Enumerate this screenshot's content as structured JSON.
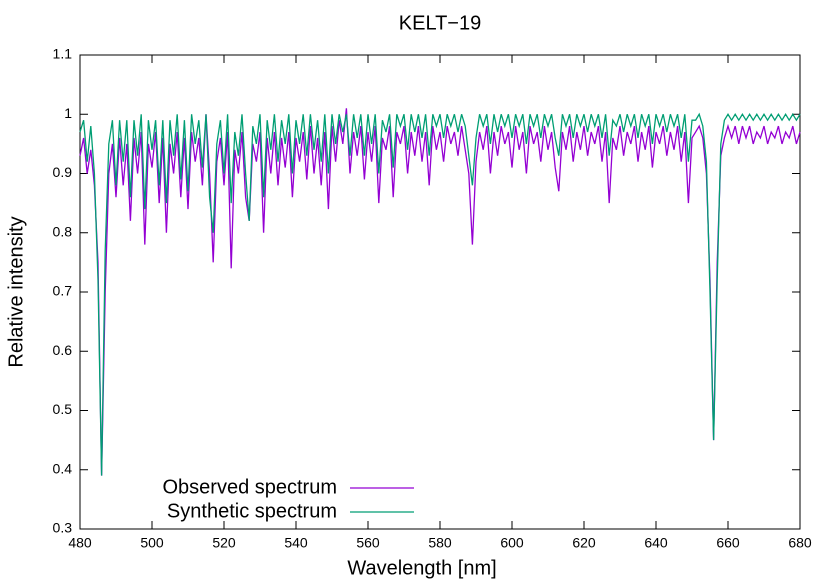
{
  "chart_data": {
    "type": "line",
    "title": "KELT−19",
    "x_label": "Wavelength [nm]",
    "y_label": "Relative intensity",
    "x": [
      480,
      481,
      482,
      483,
      484,
      485,
      486,
      487,
      488,
      489,
      490,
      491,
      492,
      493,
      494,
      495,
      496,
      497,
      498,
      499,
      500,
      501,
      502,
      503,
      504,
      505,
      506,
      507,
      508,
      509,
      510,
      511,
      512,
      513,
      514,
      515,
      516,
      517,
      518,
      519,
      520,
      521,
      522,
      523,
      524,
      525,
      526,
      527,
      528,
      529,
      530,
      531,
      532,
      533,
      534,
      535,
      536,
      537,
      538,
      539,
      540,
      541,
      542,
      543,
      544,
      545,
      546,
      547,
      548,
      549,
      550,
      551,
      552,
      553,
      554,
      555,
      556,
      557,
      558,
      559,
      560,
      561,
      562,
      563,
      564,
      565,
      566,
      567,
      568,
      569,
      570,
      571,
      572,
      573,
      574,
      575,
      576,
      577,
      578,
      579,
      580,
      581,
      582,
      583,
      584,
      585,
      586,
      587,
      588,
      589,
      590,
      591,
      592,
      593,
      594,
      595,
      596,
      597,
      598,
      599,
      600,
      601,
      602,
      603,
      604,
      605,
      606,
      607,
      608,
      609,
      610,
      611,
      612,
      613,
      614,
      615,
      616,
      617,
      618,
      619,
      620,
      621,
      622,
      623,
      624,
      625,
      626,
      627,
      628,
      629,
      630,
      631,
      632,
      633,
      634,
      635,
      636,
      637,
      638,
      639,
      640,
      641,
      642,
      643,
      644,
      645,
      646,
      647,
      648,
      649,
      650,
      651,
      652,
      653,
      654,
      655,
      656,
      657,
      658,
      659,
      660,
      661,
      662,
      663,
      664,
      665,
      666,
      667,
      668,
      669,
      670,
      671,
      672,
      673,
      674,
      675,
      676,
      677,
      678,
      679,
      680
    ],
    "series": [
      {
        "name": "Observed spectrum",
        "color": "#9400d3",
        "values": [
          0.93,
          0.96,
          0.9,
          0.94,
          0.88,
          0.75,
          0.39,
          0.7,
          0.9,
          0.95,
          0.86,
          0.96,
          0.88,
          0.95,
          0.82,
          0.96,
          0.9,
          0.97,
          0.78,
          0.95,
          0.91,
          0.97,
          0.85,
          0.96,
          0.8,
          0.95,
          0.9,
          0.97,
          0.86,
          0.96,
          0.84,
          0.97,
          0.92,
          0.96,
          0.88,
          1.0,
          0.9,
          0.75,
          0.92,
          0.96,
          0.88,
          0.97,
          0.74,
          0.94,
          0.9,
          0.97,
          0.86,
          0.82,
          0.95,
          0.92,
          0.97,
          0.8,
          0.96,
          0.9,
          0.97,
          0.88,
          0.96,
          0.91,
          0.97,
          0.86,
          0.96,
          0.92,
          0.97,
          0.89,
          0.98,
          0.9,
          0.96,
          0.88,
          0.97,
          0.84,
          0.98,
          0.92,
          0.99,
          0.95,
          1.01,
          0.9,
          0.97,
          0.93,
          0.98,
          0.89,
          0.97,
          0.92,
          0.98,
          0.85,
          0.96,
          0.94,
          0.98,
          0.86,
          0.97,
          0.95,
          0.98,
          0.9,
          0.97,
          0.93,
          0.98,
          0.92,
          0.97,
          0.88,
          0.98,
          0.94,
          0.97,
          0.92,
          0.98,
          0.95,
          0.97,
          0.93,
          0.98,
          0.94,
          0.9,
          0.78,
          0.92,
          0.97,
          0.94,
          0.98,
          0.9,
          0.97,
          0.93,
          0.98,
          0.95,
          0.97,
          0.91,
          0.98,
          0.94,
          0.97,
          0.9,
          0.98,
          0.95,
          0.97,
          0.92,
          0.98,
          0.94,
          0.97,
          0.91,
          0.87,
          0.97,
          0.94,
          0.98,
          0.92,
          0.97,
          0.94,
          0.98,
          0.93,
          0.97,
          0.95,
          0.98,
          0.92,
          0.97,
          0.85,
          0.96,
          0.94,
          0.98,
          0.93,
          0.97,
          0.95,
          0.98,
          0.92,
          0.97,
          0.94,
          0.98,
          0.91,
          0.97,
          0.95,
          0.98,
          0.93,
          0.97,
          0.94,
          0.98,
          0.92,
          0.97,
          0.85,
          0.96,
          0.97,
          0.98,
          0.96,
          0.9,
          0.72,
          0.45,
          0.75,
          0.93,
          0.96,
          0.98,
          0.96,
          0.98,
          0.95,
          0.98,
          0.96,
          0.98,
          0.95,
          0.97,
          0.96,
          0.98,
          0.95,
          0.97,
          0.96,
          0.98,
          0.95,
          0.97,
          0.96,
          0.98,
          0.95,
          0.97
        ]
      },
      {
        "name": "Synthetic spectrum",
        "color": "#009e73",
        "values": [
          0.97,
          0.99,
          0.92,
          0.98,
          0.9,
          0.72,
          0.39,
          0.77,
          0.95,
          0.99,
          0.88,
          0.99,
          0.92,
          0.99,
          0.86,
          0.99,
          0.93,
          1.0,
          0.84,
          0.99,
          0.94,
          0.99,
          0.88,
          0.99,
          0.85,
          0.99,
          0.93,
          1.0,
          0.89,
          0.99,
          0.87,
          1.0,
          0.95,
          0.99,
          0.91,
          1.0,
          0.86,
          0.8,
          0.95,
          0.99,
          0.9,
          1.0,
          0.85,
          0.97,
          0.93,
          1.0,
          0.9,
          0.82,
          0.98,
          0.95,
          1.0,
          0.86,
          0.99,
          0.94,
          1.0,
          0.92,
          0.99,
          0.95,
          1.0,
          0.9,
          0.99,
          0.95,
          1.0,
          0.93,
          1.0,
          0.94,
          0.99,
          0.92,
          1.0,
          0.9,
          1.0,
          0.95,
          1.0,
          0.97,
          1.0,
          0.93,
          1.0,
          0.96,
          1.0,
          0.93,
          1.0,
          0.95,
          1.0,
          0.9,
          0.99,
          0.97,
          1.0,
          0.91,
          1.0,
          0.98,
          1.0,
          0.94,
          1.0,
          0.97,
          1.0,
          0.96,
          1.0,
          0.93,
          1.0,
          0.98,
          1.0,
          0.96,
          1.0,
          0.98,
          1.0,
          0.97,
          1.0,
          0.98,
          0.93,
          0.88,
          0.96,
          1.0,
          0.98,
          1.0,
          0.95,
          1.0,
          0.97,
          1.0,
          0.98,
          1.0,
          0.96,
          1.0,
          0.98,
          1.0,
          0.95,
          1.0,
          0.98,
          1.0,
          0.96,
          1.0,
          0.98,
          1.0,
          0.96,
          0.93,
          1.0,
          0.98,
          1.0,
          0.96,
          1.0,
          0.98,
          1.0,
          0.97,
          1.0,
          0.98,
          1.0,
          0.96,
          1.0,
          0.93,
          0.99,
          0.98,
          1.0,
          0.97,
          1.0,
          0.98,
          1.0,
          0.96,
          1.0,
          0.98,
          1.0,
          0.95,
          1.0,
          0.98,
          1.0,
          0.97,
          1.0,
          0.98,
          1.0,
          0.96,
          1.0,
          0.92,
          0.99,
          0.99,
          1.0,
          0.98,
          0.92,
          0.7,
          0.45,
          0.72,
          0.95,
          0.99,
          1.0,
          0.99,
          1.0,
          0.99,
          1.0,
          0.99,
          1.0,
          0.99,
          1.0,
          0.99,
          1.0,
          0.99,
          1.0,
          0.99,
          1.0,
          0.99,
          1.0,
          0.99,
          1.0,
          0.99,
          1.0
        ]
      }
    ],
    "xlim": [
      480,
      680
    ],
    "xticks": [
      480,
      500,
      520,
      540,
      560,
      580,
      600,
      620,
      640,
      660,
      680
    ],
    "ylim": [
      0.3,
      1.1
    ],
    "yticks": [
      0.3,
      0.4,
      0.5,
      0.6,
      0.7,
      0.8,
      0.9,
      1,
      1.1
    ],
    "grid": false,
    "legend": "bottom-left"
  }
}
